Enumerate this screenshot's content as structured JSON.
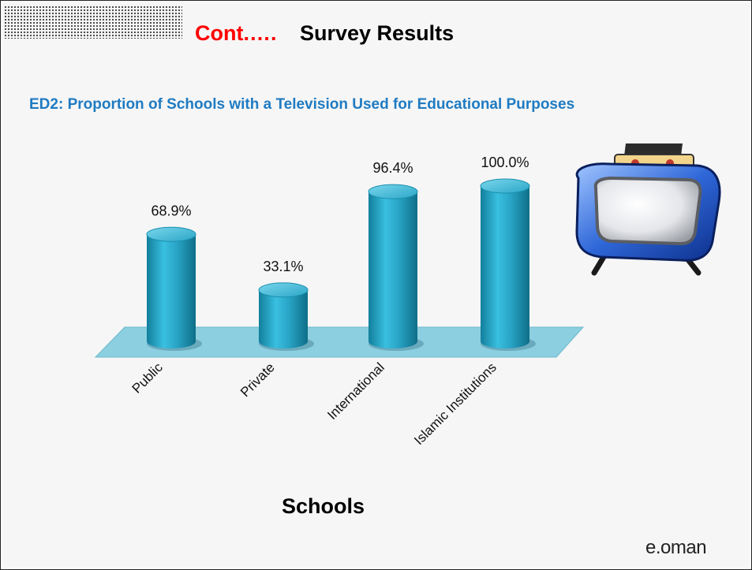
{
  "title": {
    "accent": "Cont.….",
    "main": "Survey Results"
  },
  "subtitle": "ED2: Proportion of Schools with a Television Used for Educational Purposes",
  "brand": "e.oman",
  "decoration": {
    "tv": "television-illustration",
    "corner": "dotted-corner-pattern"
  },
  "colors": {
    "bar": "#26a8c8",
    "accent": "#ff0000",
    "subtitle": "#1f7bc2",
    "floor": "#8ccfe0"
  },
  "chart_data": {
    "type": "bar",
    "title": "ED2: Proportion of Schools with a Television Used for Educational Purposes",
    "xlabel": "Schools",
    "ylabel": "",
    "categories": [
      "Public",
      "Private",
      "International",
      "Islamic Institutions"
    ],
    "values": [
      68.9,
      33.1,
      96.4,
      100.0
    ],
    "value_labels": [
      "68.9%",
      "33.1%",
      "96.4%",
      "100.0%"
    ],
    "ylim": [
      0,
      100
    ],
    "grid": false,
    "legend": "none"
  }
}
